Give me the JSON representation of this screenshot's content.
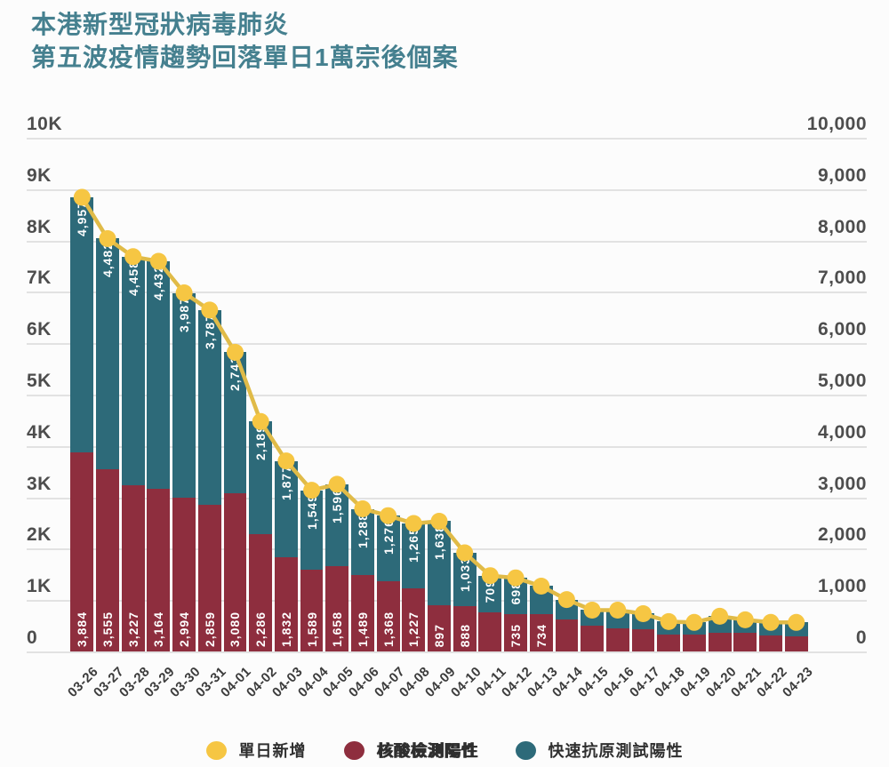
{
  "title": {
    "line1": "本港新型冠狀病毒肺炎",
    "line2": "第五波疫情趨勢回落單日1萬宗後個案"
  },
  "colors": {
    "title_teal": "#45808f",
    "bar_pcr_red": "#8e2e3e",
    "bar_rat_teal": "#2d6a79",
    "line_yellow": "#e0bb48",
    "dot_yellow": "#f6c643",
    "grid": "#e2e2e2",
    "axis_text": "#4d4d4d",
    "bar_label_text": "#ffffff"
  },
  "y_axis": {
    "left_ticks": [
      "10K",
      "9K",
      "8K",
      "7K",
      "6K",
      "5K",
      "4K",
      "3K",
      "2K",
      "1K",
      "0"
    ],
    "right_ticks": [
      "10,000",
      "9,000",
      "8,000",
      "7,000",
      "6,000",
      "5,000",
      "4,000",
      "3,000",
      "2,000",
      "1,000",
      "0"
    ]
  },
  "legend": {
    "items": [
      {
        "label": "單日新增",
        "color": "#f6c643",
        "type": "line-dot"
      },
      {
        "label": "核酸檢測陽性",
        "color": "#8e2e3e",
        "type": "bar"
      },
      {
        "label": "快速抗原測試陽性",
        "color": "#2d6a79",
        "type": "bar"
      }
    ]
  },
  "chart_data": {
    "type": "bar",
    "subtype": "stacked-bars-with-line",
    "title": "本港新型冠狀病毒肺炎 第五波疫情趨勢回落單日1萬宗後個案",
    "xlabel": "",
    "ylabel": "",
    "ylim": [
      0,
      10000
    ],
    "grid": true,
    "legend_position": "bottom",
    "categories": [
      "03-26",
      "03-27",
      "03-28",
      "03-29",
      "03-30",
      "03-31",
      "04-01",
      "04-02",
      "04-03",
      "04-04",
      "04-05",
      "04-06",
      "04-07",
      "04-08",
      "04-09",
      "04-10",
      "04-11",
      "04-12",
      "04-13",
      "04-14",
      "04-15",
      "04-16",
      "04-17",
      "04-18",
      "04-19",
      "04-20",
      "04-21",
      "04-22",
      "04-23"
    ],
    "series": [
      {
        "name": "核酸檢測陽性",
        "color": "#8e2e3e",
        "values": [
          3884,
          3555,
          3227,
          3164,
          2994,
          2859,
          3080,
          2286,
          1832,
          1589,
          1658,
          1489,
          1368,
          1227,
          897,
          888,
          766,
          735,
          734,
          616,
          497,
          445,
          428,
          325,
          325,
          360,
          355,
          308,
          291
        ],
        "labels": [
          "3,884",
          "3,555",
          "3,227",
          "3,164",
          "2,994",
          "2,859",
          "3,080",
          "2,286",
          "1,832",
          "1,589",
          "1,658",
          "1,489",
          "1,368",
          "1,227",
          "897",
          "888",
          null,
          "735",
          "734",
          null,
          null,
          null,
          null,
          null,
          null,
          null,
          null,
          null,
          null
        ]
      },
      {
        "name": "快速抗原測試陽性",
        "color": "#2d6a79",
        "values": [
          4957,
          4482,
          4458,
          4432,
          3987,
          3787,
          2743,
          2189,
          1877,
          1549,
          1596,
          1288,
          1276,
          1265,
          1638,
          1033,
          709,
          698,
          538,
          394,
          308,
          360,
          308,
          257,
          240,
          325,
          261,
          257,
          274
        ],
        "labels": [
          "4,957",
          "4,482",
          "4,458",
          "4,432",
          "3,987",
          "3,787",
          "2,743",
          "2,189",
          "1,877",
          "1,549",
          "1,596",
          "1,288",
          "1,276",
          "1,265",
          "1,638",
          "1,033",
          "709",
          "698",
          null,
          null,
          null,
          null,
          null,
          null,
          null,
          null,
          null,
          null,
          null
        ]
      }
    ],
    "line": {
      "name": "單日新增",
      "dot_color": "#f6c643",
      "stroke_color": "#e0bb48",
      "values": [
        8841,
        8037,
        7685,
        7596,
        6981,
        6646,
        5823,
        4475,
        3709,
        3138,
        3254,
        2777,
        2644,
        2492,
        2535,
        1921,
        1475,
        1433,
        1272,
        1010,
        805,
        805,
        736,
        582,
        565,
        685,
        616,
        565,
        565
      ]
    }
  }
}
